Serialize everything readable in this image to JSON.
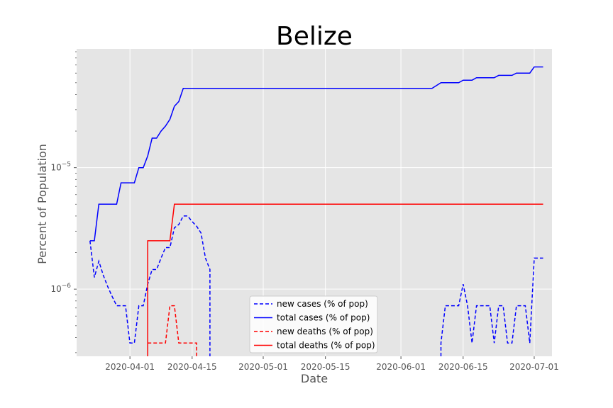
{
  "chart_data": {
    "type": "line",
    "title": "Belize",
    "xlabel": "Date",
    "ylabel": "Percent of Population",
    "y_scale": "log",
    "ylim": [
      2.8e-07,
      9.5e-05
    ],
    "xlim": [
      "2020-03-20",
      "2020-07-05"
    ],
    "grid": true,
    "legend_position": "lower-center",
    "x_ticks": [
      "2020-04-01",
      "2020-04-15",
      "2020-05-01",
      "2020-05-15",
      "2020-06-01",
      "2020-06-15",
      "2020-07-01"
    ],
    "y_ticks": [
      {
        "value": 1e-06,
        "base": "10",
        "exp": "−6"
      },
      {
        "value": 1e-05,
        "base": "10",
        "exp": "−5"
      }
    ],
    "series": [
      {
        "name": "new cases (% of pop)",
        "color": "#0000ff",
        "style": "dashed",
        "points": [
          [
            "2020-03-23",
            2.5e-06
          ],
          [
            "2020-03-24",
            1.25e-06
          ],
          [
            "2020-03-25",
            1.7e-06
          ],
          [
            "2020-03-26",
            1.3e-06
          ],
          [
            "2020-03-27",
            1.05e-06
          ],
          [
            "2020-03-28",
            8.7e-07
          ],
          [
            "2020-03-29",
            7.3e-07
          ],
          [
            "2020-03-30",
            7.3e-07
          ],
          [
            "2020-03-31",
            7.3e-07
          ],
          [
            "2020-04-01",
            3.6e-07
          ],
          [
            "2020-04-02",
            3.6e-07
          ],
          [
            "2020-04-03",
            7.3e-07
          ],
          [
            "2020-04-04",
            7.3e-07
          ],
          [
            "2020-04-05",
            1.1e-06
          ],
          [
            "2020-04-06",
            1.45e-06
          ],
          [
            "2020-04-07",
            1.45e-06
          ],
          [
            "2020-04-08",
            1.8e-06
          ],
          [
            "2020-04-09",
            2.2e-06
          ],
          [
            "2020-04-10",
            2.2e-06
          ],
          [
            "2020-04-11",
            3.2e-06
          ],
          [
            "2020-04-12",
            3.4e-06
          ],
          [
            "2020-04-13",
            4e-06
          ],
          [
            "2020-04-14",
            4e-06
          ],
          [
            "2020-04-15",
            3.6e-06
          ],
          [
            "2020-04-16",
            3.3e-06
          ],
          [
            "2020-04-17",
            2.9e-06
          ],
          [
            "2020-04-18",
            1.8e-06
          ],
          [
            "2020-04-19",
            1.45e-06
          ],
          [
            "2020-04-19",
            2.8e-07
          ],
          [
            null,
            null
          ],
          [
            "2020-06-10",
            2.8e-07
          ],
          [
            "2020-06-10",
            3.6e-07
          ],
          [
            "2020-06-11",
            7.3e-07
          ],
          [
            "2020-06-12",
            7.3e-07
          ],
          [
            "2020-06-13",
            7.3e-07
          ],
          [
            "2020-06-14",
            7.3e-07
          ],
          [
            "2020-06-15",
            1.1e-06
          ],
          [
            "2020-06-16",
            7.3e-07
          ],
          [
            "2020-06-17",
            3.6e-07
          ],
          [
            "2020-06-18",
            7.3e-07
          ],
          [
            "2020-06-19",
            7.3e-07
          ],
          [
            "2020-06-20",
            7.3e-07
          ],
          [
            "2020-06-21",
            7.3e-07
          ],
          [
            "2020-06-22",
            3.6e-07
          ],
          [
            "2020-06-23",
            7.3e-07
          ],
          [
            "2020-06-24",
            7.3e-07
          ],
          [
            "2020-06-25",
            3.6e-07
          ],
          [
            "2020-06-26",
            3.6e-07
          ],
          [
            "2020-06-27",
            7.3e-07
          ],
          [
            "2020-06-28",
            7.3e-07
          ],
          [
            "2020-06-29",
            7.3e-07
          ],
          [
            "2020-06-30",
            3.6e-07
          ],
          [
            "2020-07-01",
            1.8e-06
          ],
          [
            "2020-07-02",
            1.8e-06
          ],
          [
            "2020-07-03",
            1.8e-06
          ]
        ]
      },
      {
        "name": "total cases (% of pop)",
        "color": "#0000ff",
        "style": "solid",
        "points": [
          [
            "2020-03-23",
            2.5e-06
          ],
          [
            "2020-03-24",
            2.5e-06
          ],
          [
            "2020-03-25",
            5e-06
          ],
          [
            "2020-03-29",
            5e-06
          ],
          [
            "2020-03-30",
            7.5e-06
          ],
          [
            "2020-04-02",
            7.5e-06
          ],
          [
            "2020-04-03",
            1e-05
          ],
          [
            "2020-04-04",
            1e-05
          ],
          [
            "2020-04-05",
            1.25e-05
          ],
          [
            "2020-04-06",
            1.75e-05
          ],
          [
            "2020-04-07",
            1.75e-05
          ],
          [
            "2020-04-08",
            2e-05
          ],
          [
            "2020-04-09",
            2.2e-05
          ],
          [
            "2020-04-10",
            2.5e-05
          ],
          [
            "2020-04-11",
            3.2e-05
          ],
          [
            "2020-04-12",
            3.5e-05
          ],
          [
            "2020-04-13",
            4.5e-05
          ],
          [
            "2020-06-08",
            4.5e-05
          ],
          [
            "2020-06-10",
            5e-05
          ],
          [
            "2020-06-14",
            5e-05
          ],
          [
            "2020-06-15",
            5.25e-05
          ],
          [
            "2020-06-17",
            5.25e-05
          ],
          [
            "2020-06-18",
            5.5e-05
          ],
          [
            "2020-06-22",
            5.5e-05
          ],
          [
            "2020-06-23",
            5.75e-05
          ],
          [
            "2020-06-26",
            5.75e-05
          ],
          [
            "2020-06-27",
            6e-05
          ],
          [
            "2020-06-30",
            6e-05
          ],
          [
            "2020-07-01",
            6.75e-05
          ],
          [
            "2020-07-03",
            6.75e-05
          ]
        ]
      },
      {
        "name": "new deaths (% of pop)",
        "color": "#ff0000",
        "style": "dashed",
        "points": [
          [
            "2020-04-05",
            3.6e-07
          ],
          [
            "2020-04-09",
            3.6e-07
          ],
          [
            "2020-04-10",
            7.3e-07
          ],
          [
            "2020-04-11",
            7.3e-07
          ],
          [
            "2020-04-12",
            3.6e-07
          ],
          [
            "2020-04-16",
            3.6e-07
          ],
          [
            "2020-04-16",
            2.8e-07
          ]
        ]
      },
      {
        "name": "total deaths (% of pop)",
        "color": "#ff0000",
        "style": "solid",
        "points": [
          [
            "2020-04-05",
            2.8e-07
          ],
          [
            "2020-04-05",
            2.5e-06
          ],
          [
            "2020-04-10",
            2.5e-06
          ],
          [
            "2020-04-11",
            5e-06
          ],
          [
            "2020-07-03",
            5e-06
          ]
        ]
      }
    ]
  }
}
